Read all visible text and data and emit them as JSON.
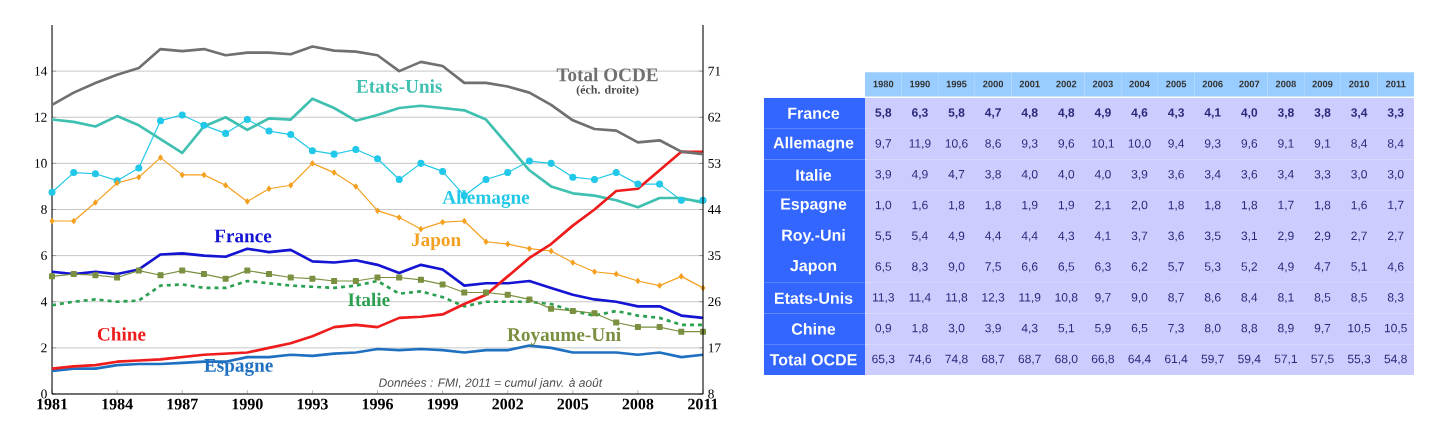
{
  "chart_data": [
    {
      "type": "line",
      "x": [
        1981,
        1982,
        1983,
        1984,
        1985,
        1986,
        1987,
        1988,
        1989,
        1990,
        1991,
        1992,
        1993,
        1994,
        1995,
        1996,
        1997,
        1998,
        1999,
        2000,
        2001,
        2002,
        2003,
        2004,
        2005,
        2006,
        2007,
        2008,
        2009,
        2010,
        2011
      ],
      "xlim": [
        1981,
        2011
      ],
      "xticks": [
        1981,
        1984,
        1987,
        1990,
        1993,
        1996,
        1999,
        2002,
        2005,
        2008,
        2011
      ],
      "ylim": [
        0,
        16
      ],
      "yticks": [
        0,
        2,
        4,
        6,
        8,
        10,
        12,
        14
      ],
      "y2lim": [
        8,
        80
      ],
      "y2ticks": [
        8,
        17,
        26,
        35,
        44,
        53,
        62,
        71
      ],
      "grid": "y",
      "series": [
        {
          "name": "France",
          "color": "#1414d2",
          "marker": "none",
          "line_style": "solid",
          "values": [
            5.3,
            5.2,
            5.3,
            5.2,
            5.4,
            6.05,
            6.1,
            6.0,
            5.95,
            6.3,
            6.15,
            6.25,
            5.75,
            5.7,
            5.8,
            5.6,
            5.25,
            5.6,
            5.4,
            4.7,
            4.8,
            4.8,
            4.9,
            4.6,
            4.3,
            4.1,
            4.0,
            3.8,
            3.8,
            3.4,
            3.3
          ]
        },
        {
          "name": "Allemagne",
          "color": "#22c8e8",
          "marker": "circle",
          "line_style": "solid",
          "values": [
            8.75,
            9.6,
            9.55,
            9.25,
            9.8,
            11.85,
            12.1,
            11.65,
            11.3,
            11.9,
            11.4,
            11.25,
            10.55,
            10.4,
            10.6,
            10.2,
            9.3,
            10.0,
            9.65,
            8.6,
            9.3,
            9.6,
            10.1,
            10.0,
            9.4,
            9.3,
            9.6,
            9.1,
            9.1,
            8.4,
            8.4
          ]
        },
        {
          "name": "Italie",
          "color": "#2aa050",
          "marker": "none",
          "line_style": "dashed",
          "values": [
            3.85,
            4.0,
            4.1,
            4.0,
            4.05,
            4.7,
            4.75,
            4.6,
            4.6,
            4.9,
            4.8,
            4.7,
            4.65,
            4.6,
            4.7,
            4.9,
            4.35,
            4.45,
            4.2,
            3.8,
            4.0,
            4.0,
            4.0,
            3.9,
            3.6,
            3.4,
            3.6,
            3.4,
            3.3,
            3.0,
            3.0
          ]
        },
        {
          "name": "Espagne",
          "color": "#1f70c0",
          "marker": "none",
          "line_style": "solid",
          "values": [
            1.0,
            1.1,
            1.1,
            1.25,
            1.3,
            1.3,
            1.35,
            1.4,
            1.4,
            1.6,
            1.6,
            1.7,
            1.65,
            1.75,
            1.8,
            1.95,
            1.9,
            1.95,
            1.9,
            1.8,
            1.9,
            1.9,
            2.1,
            2.0,
            1.8,
            1.8,
            1.8,
            1.7,
            1.8,
            1.6,
            1.7
          ]
        },
        {
          "name": "Royaume-Uni",
          "color": "#7a9040",
          "marker": "square",
          "line_style": "solid",
          "values": [
            5.1,
            5.2,
            5.15,
            5.05,
            5.35,
            5.15,
            5.35,
            5.2,
            5.0,
            5.35,
            5.2,
            5.05,
            5.0,
            4.9,
            4.9,
            5.05,
            5.05,
            4.95,
            4.75,
            4.4,
            4.4,
            4.3,
            4.1,
            3.7,
            3.6,
            3.5,
            3.1,
            2.9,
            2.9,
            2.7,
            2.7
          ]
        },
        {
          "name": "Japon",
          "color": "#f5a020",
          "marker": "diamond",
          "line_style": "solid",
          "values": [
            7.5,
            7.5,
            8.3,
            9.15,
            9.4,
            10.25,
            9.5,
            9.5,
            9.05,
            8.35,
            8.9,
            9.05,
            10.0,
            9.6,
            9.0,
            7.95,
            7.65,
            7.15,
            7.45,
            7.5,
            6.6,
            6.5,
            6.3,
            6.2,
            5.7,
            5.3,
            5.2,
            4.9,
            4.7,
            5.1,
            4.6
          ]
        },
        {
          "name": "Etats-Unis",
          "color": "#40c0b0",
          "marker": "none",
          "line_style": "solid",
          "values": [
            11.9,
            11.8,
            11.6,
            12.05,
            11.65,
            11.05,
            10.45,
            11.6,
            12.0,
            11.45,
            11.95,
            11.9,
            12.8,
            12.4,
            11.85,
            12.1,
            12.4,
            12.5,
            12.4,
            12.3,
            11.9,
            10.8,
            9.7,
            9.0,
            8.7,
            8.6,
            8.4,
            8.1,
            8.5,
            8.5,
            8.3
          ]
        },
        {
          "name": "Chine",
          "color": "#ee1c1c",
          "marker": "none",
          "line_style": "solid",
          "values": [
            1.1,
            1.2,
            1.25,
            1.4,
            1.45,
            1.5,
            1.6,
            1.7,
            1.75,
            1.8,
            2.0,
            2.2,
            2.5,
            2.9,
            3.0,
            2.9,
            3.3,
            3.35,
            3.45,
            3.9,
            4.3,
            5.1,
            5.9,
            6.5,
            7.3,
            8.0,
            8.8,
            8.9,
            9.7,
            10.5,
            10.5
          ]
        },
        {
          "name": "Total OCDE",
          "color": "#707070",
          "marker": "none",
          "line_style": "solid",
          "axis": "y2",
          "values": [
            64.4,
            66.8,
            68.7,
            70.3,
            71.6,
            75.3,
            74.9,
            75.3,
            74.1,
            74.6,
            74.6,
            74.3,
            75.8,
            75.0,
            74.8,
            74.1,
            71.0,
            72.8,
            72.0,
            68.7,
            68.7,
            68.0,
            66.8,
            64.4,
            61.4,
            59.7,
            59.4,
            57.1,
            57.5,
            55.3,
            54.8
          ]
        }
      ],
      "annotations": [
        "(éch. droite)",
        "Données : FMI, 2011 = cumul janv. à août"
      ]
    },
    {
      "type": "other",
      "categories": [
        "1980",
        "1990",
        "1995",
        "2000",
        "2001",
        "2002",
        "2003",
        "2004",
        "2005",
        "2006",
        "2007",
        "2008",
        "2009",
        "2010",
        "2011"
      ],
      "y_categories": [
        "France",
        "Allemagne",
        "Italie",
        "Espagne",
        "Roy.-Uni",
        "Japon",
        "Etats-Unis",
        "Chine",
        "Total OCDE"
      ],
      "cell_labels": [
        [
          "5,8",
          "6,3",
          "5,8",
          "4,7",
          "4,8",
          "4,8",
          "4,9",
          "4,6",
          "4,3",
          "4,1",
          "4,0",
          "3,8",
          "3,8",
          "3,4",
          "3,3"
        ],
        [
          "9,7",
          "11,9",
          "10,6",
          "8,6",
          "9,3",
          "9,6",
          "10,1",
          "10,0",
          "9,4",
          "9,3",
          "9,6",
          "9,1",
          "9,1",
          "8,4",
          "8,4"
        ],
        [
          "3,9",
          "4,9",
          "4,7",
          "3,8",
          "4,0",
          "4,0",
          "4,0",
          "3,9",
          "3,6",
          "3,4",
          "3,6",
          "3,4",
          "3,3",
          "3,0",
          "3,0"
        ],
        [
          "1,0",
          "1,6",
          "1,8",
          "1,8",
          "1,9",
          "1,9",
          "2,1",
          "2,0",
          "1,8",
          "1,8",
          "1,8",
          "1,7",
          "1,8",
          "1,6",
          "1,7"
        ],
        [
          "5,5",
          "5,4",
          "4,9",
          "4,4",
          "4,4",
          "4,3",
          "4,1",
          "3,7",
          "3,6",
          "3,5",
          "3,1",
          "2,9",
          "2,9",
          "2,7",
          "2,7"
        ],
        [
          "6,5",
          "8,3",
          "9,0",
          "7,5",
          "6,6",
          "6,5",
          "6,3",
          "6,2",
          "5,7",
          "5,3",
          "5,2",
          "4,9",
          "4,7",
          "5,1",
          "4,6"
        ],
        [
          "11,3",
          "11,4",
          "11,8",
          "12,3",
          "11,9",
          "10,8",
          "9,7",
          "9,0",
          "8,7",
          "8,6",
          "8,4",
          "8,1",
          "8,5",
          "8,5",
          "8,3"
        ],
        [
          "0,9",
          "1,8",
          "3,0",
          "3,9",
          "4,3",
          "5,1",
          "5,9",
          "6,5",
          "7,3",
          "8,0",
          "8,8",
          "8,9",
          "9,7",
          "10,5",
          "10,5"
        ],
        [
          "65,3",
          "74,6",
          "74,8",
          "68,7",
          "68,7",
          "68,0",
          "66,8",
          "64,4",
          "61,4",
          "59,7",
          "59,4",
          "57,1",
          "57,5",
          "55,3",
          "54,8"
        ]
      ]
    }
  ]
}
